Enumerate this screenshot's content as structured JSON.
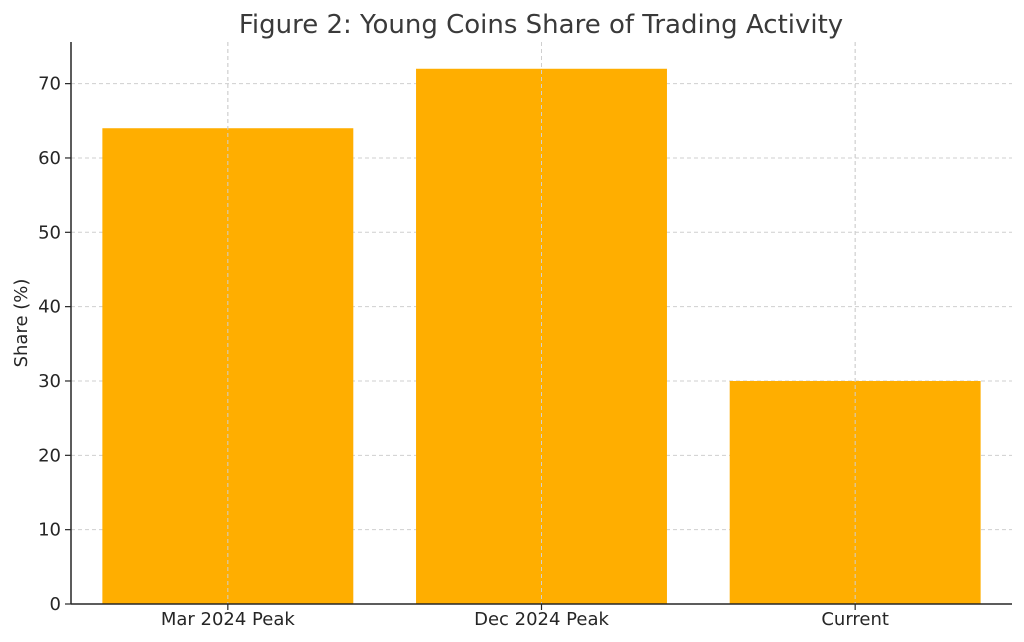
{
  "chart_data": {
    "type": "bar",
    "title": "Figure 2: Young Coins Share of Trading Activity",
    "xlabel": "",
    "ylabel": "Share (%)",
    "categories": [
      "Mar 2024 Peak",
      "Dec 2024 Peak",
      "Current"
    ],
    "values": [
      64,
      72,
      30
    ],
    "ylim": [
      0,
      75.6
    ],
    "yticks": [
      0,
      10,
      20,
      30,
      40,
      50,
      60,
      70
    ],
    "grid": true,
    "legend": "none",
    "bar_color": "#FFAE00"
  }
}
